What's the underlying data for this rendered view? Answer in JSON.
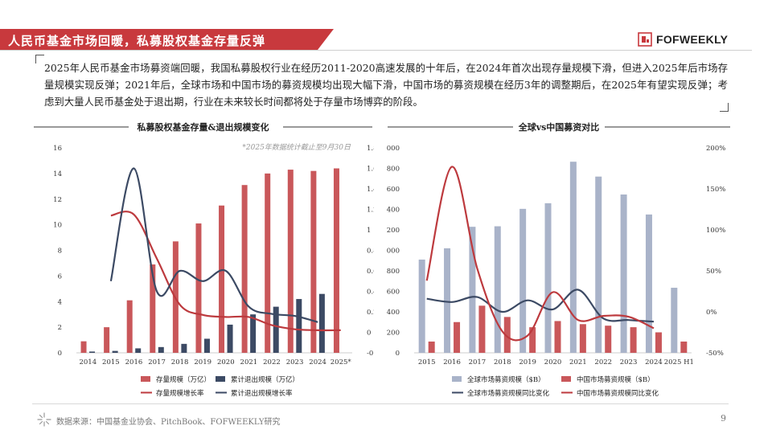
{
  "header": {
    "title": "人民币基金市场回暖，私募股权基金存量反弹",
    "brand": "FOFWEEKLY"
  },
  "intro": {
    "text": "2025年人民币基金市场募资端回暖，我国私募股权行业在经历2011-2020高速发展的十年后，在2024年首次出现存量规模下滑，但进入2025年后市场存量规模实现反弹；2021年后，全球市场和中国市场的募资规模均出现大幅下滑，中国市场的募资规模在经历3年的调整期后，在2025年有望实现反弹；考虑到大量人民币基金处于退出期，行业在未来较长时间都将处于存量市场博弈的阶段。"
  },
  "colors": {
    "brand_red": "#c8393d",
    "bar_red": "#c9575a",
    "line_red": "#bd3a3e",
    "navy": "#3c4a64",
    "light_blue": "#a9b3c9"
  },
  "chart_data": [
    {
      "type": "bar",
      "title": "私募股权基金存量&退出规模变化",
      "note": "*2025年数据统计截止至9月30日",
      "categories": [
        "2014",
        "2015",
        "2016",
        "2017",
        "2018",
        "2019",
        "2020",
        "2021",
        "2022",
        "2023",
        "2024",
        "2025*"
      ],
      "y_left": {
        "min": 0,
        "max": 16,
        "ticks": [
          "0",
          "2",
          "4",
          "6",
          "8",
          "10",
          "12",
          "14",
          "16"
        ]
      },
      "y_right": {
        "min": -0.2,
        "max": 1.8,
        "ticks": [
          "-0.2",
          "0",
          "0.2",
          "0.4",
          "0.6",
          "0.8",
          "1",
          "1.2",
          "1.4",
          "1.6",
          "1.8"
        ]
      },
      "series": [
        {
          "name": "存量规模（万亿）",
          "kind": "bar",
          "axis": "left",
          "values": [
            0.9,
            2.0,
            4.1,
            6.9,
            8.7,
            10.1,
            11.5,
            13.1,
            14.0,
            14.3,
            14.2,
            14.4
          ]
        },
        {
          "name": "累计退出规模（万亿）",
          "kind": "bar",
          "axis": "left",
          "values": [
            0.1,
            0.15,
            0.35,
            0.45,
            0.7,
            1.1,
            2.2,
            3.0,
            3.6,
            4.2,
            4.6,
            null
          ]
        },
        {
          "name": "存量规模增长率",
          "kind": "line",
          "axis": "right",
          "values": [
            null,
            1.14,
            1.15,
            0.72,
            0.27,
            0.17,
            0.15,
            0.15,
            0.07,
            0.03,
            0.02,
            0.02
          ]
        },
        {
          "name": "累计退出规模增长率",
          "kind": "line",
          "axis": "right",
          "values": [
            null,
            0.5,
            1.6,
            0.4,
            0.6,
            0.5,
            0.6,
            0.25,
            0.18,
            0.16,
            0.1,
            null
          ]
        }
      ]
    },
    {
      "type": "bar",
      "title": "全球vs中国募资对比",
      "categories": [
        "2015",
        "2016",
        "2017",
        "2018",
        "2019",
        "2020",
        "2021",
        "2022",
        "2023",
        "2024",
        "2025 H1"
      ],
      "y_left": {
        "min": 0,
        "max": 2000,
        "ticks": [
          "0",
          "200",
          "400",
          "600",
          "800",
          "1000",
          "1200",
          "1400",
          "1600",
          "1800",
          "2000"
        ]
      },
      "y_right": {
        "min": -50,
        "max": 200,
        "ticks": [
          "-50%",
          "0%",
          "50%",
          "100%",
          "150%",
          "200%"
        ]
      },
      "series": [
        {
          "name": "全球市场募资规模（$B）",
          "kind": "bar",
          "axis": "left",
          "values": [
            910,
            1020,
            1230,
            1235,
            1405,
            1460,
            1865,
            1720,
            1545,
            1350,
            635
          ]
        },
        {
          "name": "中国市场募资规模（$B）",
          "kind": "bar",
          "axis": "left",
          "values": [
            110,
            300,
            460,
            350,
            250,
            310,
            280,
            265,
            250,
            200,
            110
          ]
        },
        {
          "name": "全球市场募资规模同比变化",
          "kind": "line",
          "axis": "right",
          "values": [
            16,
            12,
            18,
            0,
            14,
            3,
            27,
            -8,
            -10,
            -12,
            null
          ]
        },
        {
          "name": "中国市场募资规模同比变化",
          "kind": "line",
          "axis": "right",
          "values": [
            38,
            177,
            53,
            -24,
            -29,
            24,
            -10,
            -5,
            -6,
            -20,
            null
          ]
        }
      ]
    }
  ],
  "footer": {
    "source": "数据来源：中国基金业协会、PitchBook、FOFWEEKLY研究",
    "page": "9"
  }
}
